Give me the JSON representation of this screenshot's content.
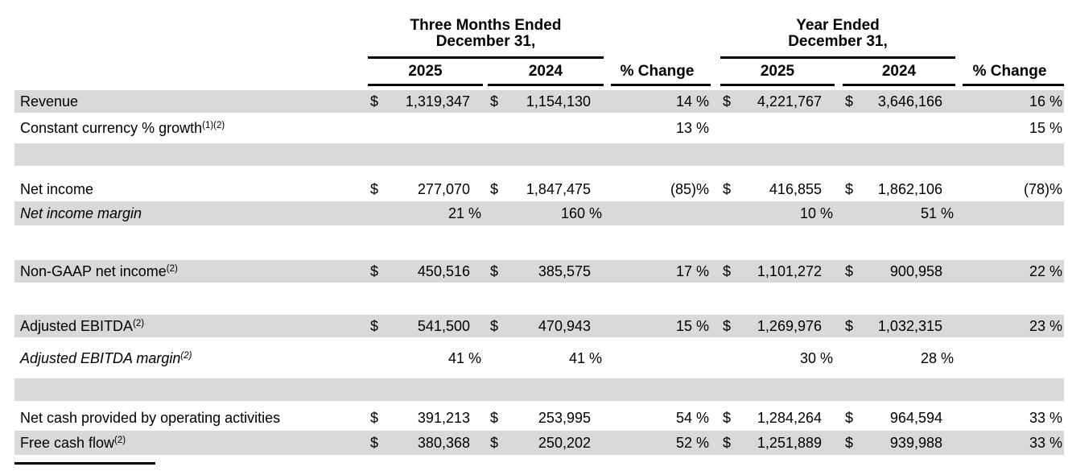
{
  "colors": {
    "row_shade": "#d9d9d9",
    "rule": "#000000",
    "text": "#000000",
    "background": "#ffffff"
  },
  "table": {
    "groups": [
      {
        "line1": "Three Months Ended",
        "line2": "December 31,"
      },
      {
        "line1": "Year Ended",
        "line2": "December 31,"
      }
    ],
    "year_cols": [
      "2025",
      "2024",
      "2025",
      "2024"
    ],
    "pct_change_label": "% Change",
    "rows": [
      {
        "kind": "data",
        "h": 28,
        "shaded": true,
        "italic": false,
        "label": "Revenue",
        "sup": "",
        "cells": [
          {
            "cur": "$",
            "val": "1,319,347"
          },
          {
            "cur": "$",
            "val": "1,154,130"
          },
          {
            "val": "14 %"
          },
          {
            "cur": "$",
            "val": "4,221,767"
          },
          {
            "cur": "$",
            "val": "3,646,166"
          },
          {
            "val": "16 %"
          }
        ]
      },
      {
        "kind": "data",
        "h": 38,
        "shaded": false,
        "italic": false,
        "label": "Constant currency % growth",
        "sup": "(1)(2)",
        "cells": [
          {},
          {},
          {
            "val": "13 %"
          },
          {},
          {},
          {
            "val": "15 %"
          }
        ]
      },
      {
        "kind": "blank",
        "h": 28,
        "shaded": true,
        "italic": false,
        "label": "",
        "sup": "",
        "cells": [
          {},
          {},
          {},
          {},
          {},
          {}
        ]
      },
      {
        "kind": "spacer",
        "h": 15,
        "shaded": false,
        "italic": false,
        "label": "",
        "sup": "",
        "cells": [
          {},
          {},
          {},
          {},
          {},
          {}
        ]
      },
      {
        "kind": "data",
        "h": 29,
        "shaded": false,
        "italic": false,
        "label": "Net income",
        "sup": "",
        "cells": [
          {
            "cur": "$",
            "val": "277,070"
          },
          {
            "cur": "$",
            "val": "1,847,475"
          },
          {
            "val": "(85)%"
          },
          {
            "cur": "$",
            "val": "416,855"
          },
          {
            "cur": "$",
            "val": "1,862,106"
          },
          {
            "val": "(78)%"
          }
        ]
      },
      {
        "kind": "data",
        "h": 30,
        "shaded": true,
        "italic": true,
        "label": "Net income margin",
        "sup": "",
        "cells": [
          {
            "val": "21 %"
          },
          {
            "val": "160 %"
          },
          {},
          {
            "val": "10 %"
          },
          {
            "val": "51 %"
          },
          {}
        ]
      },
      {
        "kind": "spacer",
        "h": 43,
        "shaded": false,
        "italic": false,
        "label": "",
        "sup": "",
        "cells": [
          {},
          {},
          {},
          {},
          {},
          {}
        ]
      },
      {
        "kind": "data",
        "h": 28,
        "shaded": true,
        "italic": false,
        "label": "Non-GAAP net income",
        "sup": "(2)",
        "cells": [
          {
            "cur": "$",
            "val": "450,516"
          },
          {
            "cur": "$",
            "val": "385,575"
          },
          {
            "val": "17 %"
          },
          {
            "cur": "$",
            "val": "1,101,272"
          },
          {
            "cur": "$",
            "val": "900,958"
          },
          {
            "val": "22 %"
          }
        ]
      },
      {
        "kind": "spacer",
        "h": 40,
        "shaded": false,
        "italic": false,
        "label": "",
        "sup": "",
        "cells": [
          {},
          {},
          {},
          {},
          {},
          {}
        ]
      },
      {
        "kind": "data",
        "h": 28,
        "shaded": true,
        "italic": false,
        "label": "Adjusted EBITDA",
        "sup": "(2)",
        "cells": [
          {
            "cur": "$",
            "val": "541,500"
          },
          {
            "cur": "$",
            "val": "470,943"
          },
          {
            "val": "15 %"
          },
          {
            "cur": "$",
            "val": "1,269,976"
          },
          {
            "cur": "$",
            "val": "1,032,315"
          },
          {
            "val": "23 %"
          }
        ]
      },
      {
        "kind": "spacer",
        "h": 12,
        "shaded": false,
        "italic": false,
        "label": "",
        "sup": "",
        "cells": [
          {},
          {},
          {},
          {},
          {},
          {}
        ]
      },
      {
        "kind": "data",
        "h": 28,
        "shaded": false,
        "italic": true,
        "label": "Adjusted EBITDA margin",
        "sup": "(2)",
        "cells": [
          {
            "val": "41 %"
          },
          {
            "val": "41 %"
          },
          {},
          {
            "val": "30 %"
          },
          {
            "val": "28 %"
          },
          {}
        ]
      },
      {
        "kind": "spacer",
        "h": 11,
        "shaded": false,
        "italic": false,
        "label": "",
        "sup": "",
        "cells": [
          {},
          {},
          {},
          {},
          {},
          {}
        ]
      },
      {
        "kind": "blank",
        "h": 28,
        "shaded": true,
        "italic": false,
        "label": "",
        "sup": "",
        "cells": [
          {},
          {},
          {},
          {},
          {},
          {}
        ]
      },
      {
        "kind": "spacer",
        "h": 7,
        "shaded": false,
        "italic": false,
        "label": "",
        "sup": "",
        "cells": [
          {},
          {},
          {},
          {},
          {},
          {}
        ]
      },
      {
        "kind": "data",
        "h": 28,
        "shaded": false,
        "italic": false,
        "label": "Net cash provided by operating activities",
        "sup": "",
        "cells": [
          {
            "cur": "$",
            "val": "391,213"
          },
          {
            "cur": "$",
            "val": "253,995"
          },
          {
            "val": "54 %"
          },
          {
            "cur": "$",
            "val": "1,284,264"
          },
          {
            "cur": "$",
            "val": "964,594"
          },
          {
            "val": "33 %"
          }
        ]
      },
      {
        "kind": "spacer",
        "h": 2,
        "shaded": false,
        "italic": false,
        "label": "",
        "sup": "",
        "cells": [
          {},
          {},
          {},
          {},
          {},
          {}
        ]
      },
      {
        "kind": "data",
        "h": 30,
        "shaded": true,
        "italic": false,
        "label": "Free cash flow",
        "sup": "(2)",
        "cells": [
          {
            "cur": "$",
            "val": "380,368"
          },
          {
            "cur": "$",
            "val": "250,202"
          },
          {
            "val": "52 %"
          },
          {
            "cur": "$",
            "val": "1,251,889"
          },
          {
            "cur": "$",
            "val": "939,988"
          },
          {
            "val": "33 %"
          }
        ]
      }
    ]
  }
}
